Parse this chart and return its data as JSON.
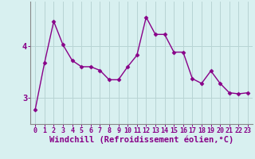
{
  "x": [
    0,
    1,
    2,
    3,
    4,
    5,
    6,
    7,
    8,
    9,
    10,
    11,
    12,
    13,
    14,
    15,
    16,
    17,
    18,
    19,
    20,
    21,
    22,
    23
  ],
  "y": [
    2.78,
    3.67,
    4.47,
    4.02,
    3.72,
    3.6,
    3.6,
    3.53,
    3.35,
    3.35,
    3.6,
    3.82,
    4.55,
    4.22,
    4.22,
    3.88,
    3.88,
    3.37,
    3.28,
    3.52,
    3.28,
    3.1,
    3.08,
    3.1
  ],
  "line_color": "#880088",
  "marker": "D",
  "marker_size": 2.5,
  "bg_color": "#d8f0f0",
  "grid_color": "#b8d4d4",
  "axis_line_color": "#888888",
  "xlabel": "Windchill (Refroidissement éolien,°C)",
  "xlabel_color": "#880088",
  "ylabel_ticks": [
    3,
    4
  ],
  "ylim": [
    2.5,
    4.85
  ],
  "xlim": [
    -0.5,
    23.5
  ],
  "tick_label_color": "#880088",
  "xtick_fontsize": 6.0,
  "ytick_fontsize": 7.5,
  "xlabel_fontsize": 7.5,
  "linewidth": 1.0
}
